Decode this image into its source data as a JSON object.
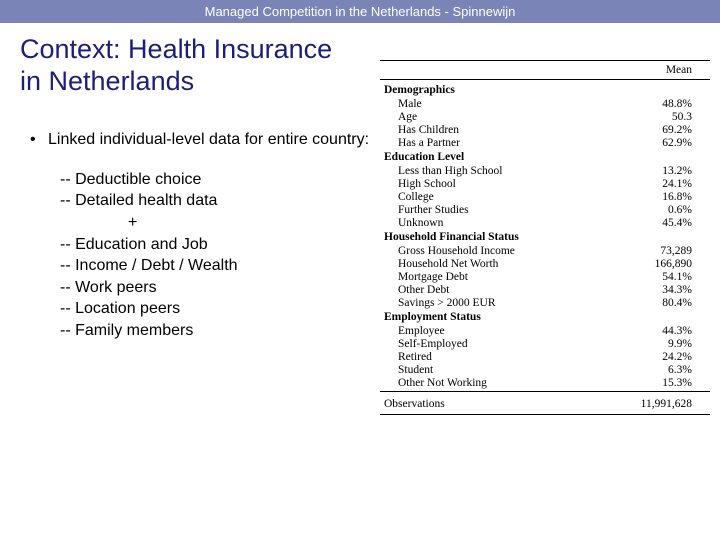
{
  "header": {
    "text": "Managed Competition in the Netherlands - Spinnewijn"
  },
  "title": {
    "text": "Context: Health Insurance in Netherlands"
  },
  "main_bullet": {
    "text": "Linked individual-level data for entire country:"
  },
  "sub_items": {
    "i0": "-- Deductible choice",
    "i1": "-- Detailed health data",
    "plus": "+",
    "i2": "-- Education and Job",
    "i3": "-- Income / Debt / Wealth",
    "i4": "-- Work peers",
    "i5": "-- Location peers",
    "i6": "-- Family members"
  },
  "table": {
    "head_mean": "Mean",
    "sections": {
      "demographics": {
        "title": "Demographics",
        "rows": {
          "r0": {
            "label": "Male",
            "value": "48.8%"
          },
          "r1": {
            "label": "Age",
            "value": "50.3"
          },
          "r2": {
            "label": "Has Children",
            "value": "69.2%"
          },
          "r3": {
            "label": "Has a Partner",
            "value": "62.9%"
          }
        }
      },
      "education": {
        "title": "Education Level",
        "rows": {
          "r0": {
            "label": "Less than High School",
            "value": "13.2%"
          },
          "r1": {
            "label": "High School",
            "value": "24.1%"
          },
          "r2": {
            "label": "College",
            "value": "16.8%"
          },
          "r3": {
            "label": "Further Studies",
            "value": "0.6%"
          },
          "r4": {
            "label": "Unknown",
            "value": "45.4%"
          }
        }
      },
      "financial": {
        "title": "Household Financial Status",
        "rows": {
          "r0": {
            "label": "Gross Household Income",
            "value": "73,289"
          },
          "r1": {
            "label": "Household Net Worth",
            "value": "166,890"
          },
          "r2": {
            "label": "Mortgage Debt",
            "value": "54.1%"
          },
          "r3": {
            "label": "Other Debt",
            "value": "34.3%"
          },
          "r4": {
            "label": "Savings > 2000 EUR",
            "value": "80.4%"
          }
        }
      },
      "employment": {
        "title": "Employment Status",
        "rows": {
          "r0": {
            "label": "Employee",
            "value": "44.3%"
          },
          "r1": {
            "label": "Self-Employed",
            "value": "9.9%"
          },
          "r2": {
            "label": "Retired",
            "value": "24.2%"
          },
          "r3": {
            "label": "Student",
            "value": "6.3%"
          },
          "r4": {
            "label": "Other Not Working",
            "value": "15.3%"
          }
        }
      }
    },
    "observations": {
      "label": "Observations",
      "value": "11,991,628"
    }
  },
  "style": {
    "header_bg": "#7a84b6",
    "header_text_color": "#ffffff",
    "title_color": "#1d1d7a",
    "body_bg": "#ffffff",
    "title_fontsize": 27,
    "body_fontsize": 16,
    "table_fontsize": 11.5,
    "table_font": "Georgia, Times New Roman, serif",
    "body_font": "Arial, Helvetica, sans-serif"
  }
}
